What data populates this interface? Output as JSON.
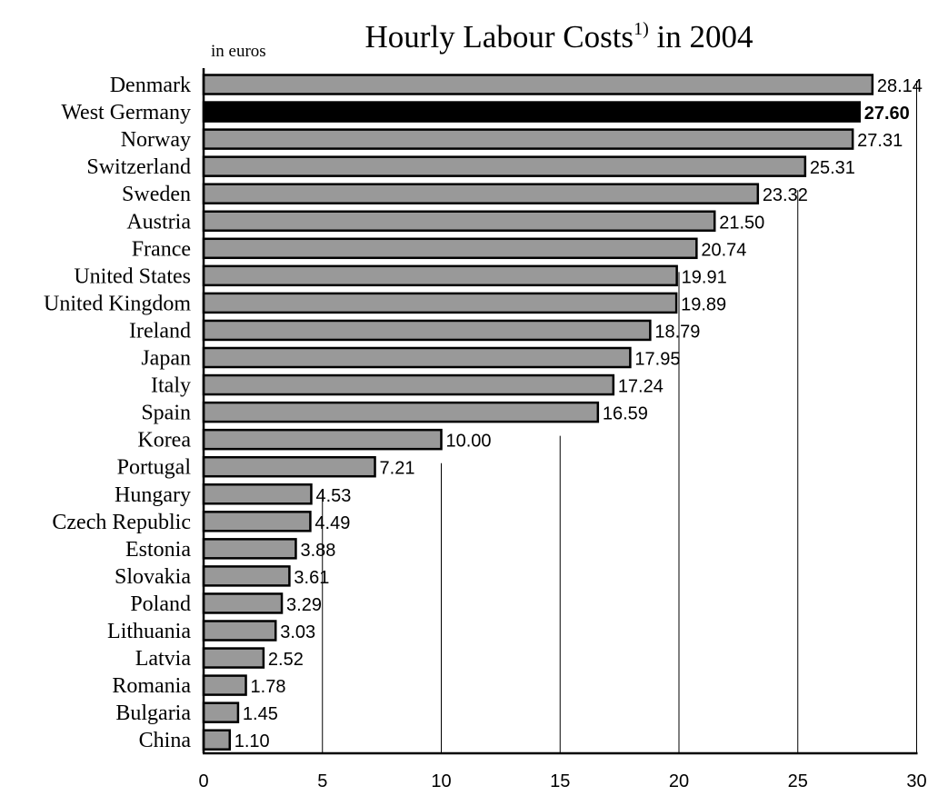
{
  "chart_data": {
    "type": "bar",
    "orientation": "horizontal",
    "title": "Hourly Labour Costs",
    "title_superscript": "1)",
    "title_suffix": " in 2004",
    "unit_label": "in euros",
    "categories": [
      "Denmark",
      "West Germany",
      "Norway",
      "Switzerland",
      "Sweden",
      "Austria",
      "France",
      "United States",
      "United Kingdom",
      "Ireland",
      "Japan",
      "Italy",
      "Spain",
      "Korea",
      "Portugal",
      "Hungary",
      "Czech Republic",
      "Estonia",
      "Slovakia",
      "Poland",
      "Lithuania",
      "Latvia",
      "Romania",
      "Bulgaria",
      "China"
    ],
    "values": [
      28.14,
      27.6,
      27.31,
      25.31,
      23.32,
      21.5,
      20.74,
      19.91,
      19.89,
      18.79,
      17.95,
      17.24,
      16.59,
      10.0,
      7.21,
      4.53,
      4.49,
      3.88,
      3.61,
      3.29,
      3.03,
      2.52,
      1.78,
      1.45,
      1.1
    ],
    "value_labels": [
      "28.14",
      "27.60",
      "27.31",
      "25.31",
      "23.32",
      "21.50",
      "20.74",
      "19.91",
      "19.89",
      "18.79",
      "17.95",
      "17.24",
      "16.59",
      "10.00",
      "7.21",
      "4.53",
      "4.49",
      "3.88",
      "3.61",
      "3.29",
      "3.03",
      "2.52",
      "1.78",
      "1.45",
      "1.10"
    ],
    "highlighted_category": "West Germany",
    "xlim": [
      0,
      30
    ],
    "x_ticks": [
      0,
      5,
      10,
      15,
      20,
      25,
      30
    ],
    "x_tick_labels": [
      "0",
      "5",
      "10",
      "15",
      "20",
      "25",
      "30"
    ],
    "grid": "vertical",
    "colors": {
      "bar": "#999999",
      "highlight": "#000000",
      "outline": "#000000",
      "grid": "#000000"
    }
  }
}
